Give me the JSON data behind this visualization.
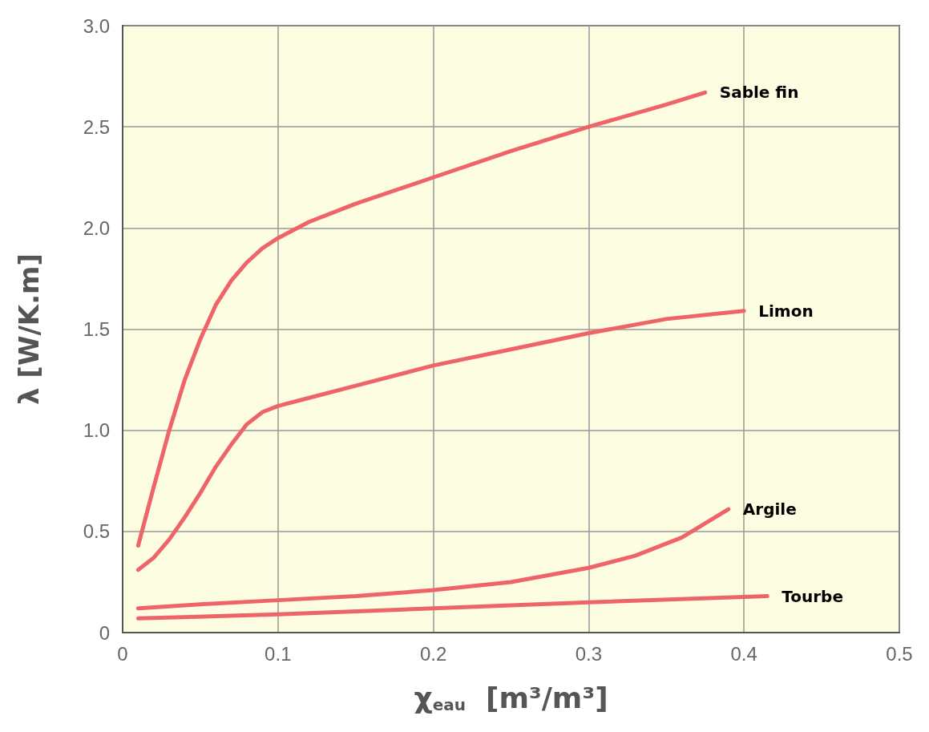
{
  "chart_data": {
    "type": "line",
    "xlabel": "χ$_{eau}$  [m³/m³]",
    "ylabel": "λ [W/K.m]",
    "xlim": [
      0,
      0.5
    ],
    "xticks": [
      0,
      0.1,
      0.2,
      0.3,
      0.4,
      0.5
    ],
    "ylim": [
      0,
      3
    ],
    "yticks": [
      0,
      0.5,
      {
        "value": 1,
        "label": "1.0"
      },
      1.5,
      {
        "value": 2,
        "label": "2.0"
      },
      2.5,
      {
        "value": 3,
        "label": "3.0"
      }
    ],
    "grid": true,
    "legend": false,
    "marker": "none",
    "line_style": "solid",
    "series": [
      {
        "name": "Sable fin",
        "color": "#ee6468",
        "x": [
          0.01,
          0.02,
          0.03,
          0.04,
          0.05,
          0.06,
          0.07,
          0.08,
          0.09,
          0.1,
          0.12,
          0.15,
          0.2,
          0.25,
          0.3,
          0.35,
          0.375
        ],
        "values": [
          0.43,
          0.72,
          1.0,
          1.25,
          1.45,
          1.62,
          1.74,
          1.83,
          1.9,
          1.95,
          2.03,
          2.12,
          2.25,
          2.38,
          2.5,
          2.61,
          2.67
        ]
      },
      {
        "name": "Limon",
        "color": "#ee6468",
        "x": [
          0.01,
          0.02,
          0.03,
          0.04,
          0.05,
          0.06,
          0.07,
          0.08,
          0.09,
          0.1,
          0.12,
          0.15,
          0.2,
          0.25,
          0.3,
          0.35,
          0.4
        ],
        "values": [
          0.31,
          0.37,
          0.46,
          0.57,
          0.69,
          0.82,
          0.93,
          1.03,
          1.09,
          1.12,
          1.16,
          1.22,
          1.32,
          1.4,
          1.48,
          1.55,
          1.59
        ]
      },
      {
        "name": "Argile",
        "color": "#ee6468",
        "x": [
          0.01,
          0.05,
          0.1,
          0.15,
          0.2,
          0.25,
          0.3,
          0.33,
          0.36,
          0.39
        ],
        "values": [
          0.12,
          0.14,
          0.16,
          0.18,
          0.21,
          0.25,
          0.32,
          0.38,
          0.47,
          0.61
        ]
      },
      {
        "name": "Tourbe",
        "color": "#ee6468",
        "x": [
          0.01,
          0.1,
          0.2,
          0.3,
          0.415
        ],
        "values": [
          0.07,
          0.09,
          0.12,
          0.15,
          0.18
        ]
      }
    ]
  }
}
